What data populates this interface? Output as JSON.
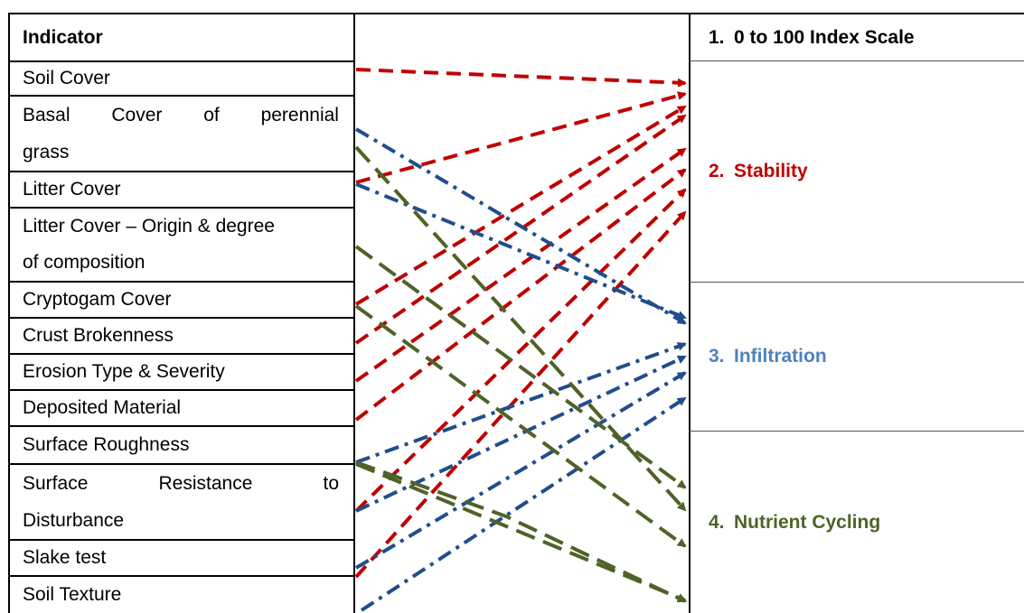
{
  "indicator_table": {
    "header": "Indicator",
    "rows": [
      {
        "lines": [
          [
            "Soil Cover"
          ]
        ]
      },
      {
        "lines": [
          [
            "Basal",
            "Cover",
            "of",
            "perennial"
          ],
          [
            "grass"
          ]
        ]
      },
      {
        "lines": [
          [
            "Litter Cover"
          ]
        ]
      },
      {
        "lines": [
          [
            "Litter Cover – Origin & degree"
          ],
          [
            "of composition"
          ]
        ]
      },
      {
        "lines": [
          [
            "Cryptogam Cover"
          ]
        ]
      },
      {
        "lines": [
          [
            "Crust Brokenness"
          ]
        ]
      },
      {
        "lines": [
          [
            "Erosion Type & Severity"
          ]
        ]
      },
      {
        "lines": [
          [
            "Deposited Material"
          ]
        ]
      },
      {
        "lines": [
          [
            "Surface Roughness"
          ]
        ]
      },
      {
        "lines": [
          [
            "Surface",
            "Resistance",
            "to"
          ],
          [
            "Disturbance"
          ]
        ]
      },
      {
        "lines": [
          [
            "Slake test"
          ]
        ]
      },
      {
        "lines": [
          [
            "Soil Texture"
          ]
        ]
      }
    ]
  },
  "outcomes": [
    {
      "number": "1.",
      "label": "0 to 100 Index Scale",
      "color": "#000000"
    },
    {
      "number": "2.",
      "label": "Stability",
      "color": "#c00000"
    },
    {
      "number": "3.",
      "label": "Infiltration",
      "color": "#4f81bd"
    },
    {
      "number": "4.",
      "label": "Nutrient Cycling",
      "color": "#4f6228"
    }
  ],
  "link_styles": {
    "stability": {
      "color": "#c00000",
      "dash": "dashed"
    },
    "infiltration": {
      "color": "#1f4e8c",
      "dash": "dash-dot"
    },
    "nutrient": {
      "color": "#4f6228",
      "dash": "long-dash"
    }
  },
  "links": [
    {
      "from": "Soil Cover",
      "to": "Stability",
      "style": "stability"
    },
    {
      "from": "Litter Cover",
      "to": "Stability",
      "style": "stability"
    },
    {
      "from": "Cryptogam Cover",
      "to": "Stability",
      "style": "stability"
    },
    {
      "from": "Crust Brokenness",
      "to": "Stability",
      "style": "stability"
    },
    {
      "from": "Erosion Type & Severity",
      "to": "Stability",
      "style": "stability"
    },
    {
      "from": "Deposited Material",
      "to": "Stability",
      "style": "stability"
    },
    {
      "from": "Surface Resistance to Disturbance",
      "to": "Stability",
      "style": "stability"
    },
    {
      "from": "Slake test",
      "to": "Stability",
      "style": "stability"
    },
    {
      "from": "Basal Cover of perennial grass",
      "to": "Infiltration",
      "style": "infiltration"
    },
    {
      "from": "Litter Cover",
      "to": "Infiltration",
      "style": "infiltration"
    },
    {
      "from": "Surface Roughness",
      "to": "Infiltration",
      "style": "infiltration"
    },
    {
      "from": "Surface Resistance to Disturbance",
      "to": "Infiltration",
      "style": "infiltration"
    },
    {
      "from": "Slake test",
      "to": "Infiltration",
      "style": "infiltration"
    },
    {
      "from": "Soil Texture",
      "to": "Infiltration",
      "style": "infiltration"
    },
    {
      "from": "Basal Cover of perennial grass",
      "to": "Nutrient Cycling",
      "style": "nutrient"
    },
    {
      "from": "Litter Cover – Origin & degree of composition",
      "to": "Nutrient Cycling",
      "style": "nutrient"
    },
    {
      "from": "Cryptogam Cover",
      "to": "Nutrient Cycling",
      "style": "nutrient"
    },
    {
      "from": "Surface Roughness",
      "to": "Nutrient Cycling",
      "style": "nutrient"
    },
    {
      "from": "Surface Roughness",
      "to": "Nutrient Cycling",
      "style": "nutrient"
    }
  ]
}
